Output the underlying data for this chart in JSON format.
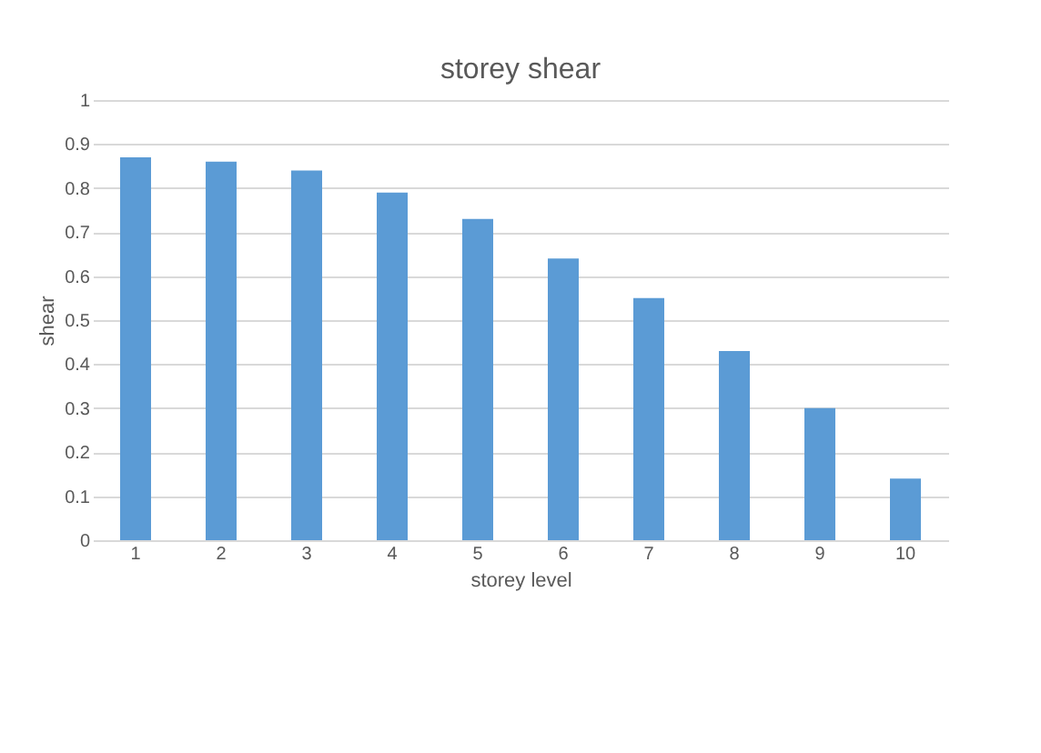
{
  "chart_data": {
    "type": "bar",
    "title": "storey shear",
    "xlabel": "storey level",
    "ylabel": "shear",
    "categories": [
      "1",
      "2",
      "3",
      "4",
      "5",
      "6",
      "7",
      "8",
      "9",
      "10"
    ],
    "values": [
      0.87,
      0.86,
      0.84,
      0.79,
      0.73,
      0.64,
      0.55,
      0.43,
      0.3,
      0.14
    ],
    "color": "#5b9bd5",
    "ylim": [
      0,
      1
    ],
    "yticks": [
      0,
      0.1,
      0.2,
      0.3,
      0.4,
      0.5,
      0.6,
      0.7,
      0.8,
      0.9,
      1
    ],
    "grid": "y"
  }
}
